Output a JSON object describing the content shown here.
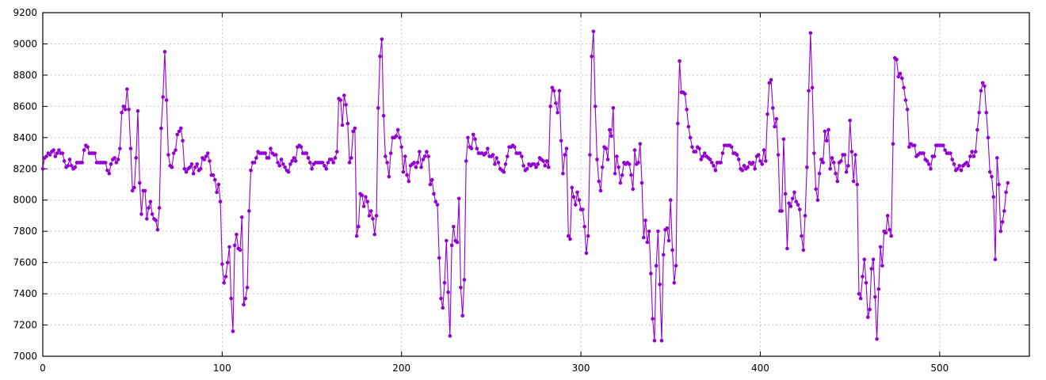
{
  "chart_data": {
    "type": "line",
    "title": "",
    "xlabel": "",
    "ylabel": "",
    "xlim": [
      0,
      550
    ],
    "ylim": [
      7000,
      9200
    ],
    "x_ticks": [
      0,
      100,
      200,
      300,
      400,
      500
    ],
    "y_ticks": [
      7000,
      7200,
      7400,
      7600,
      7800,
      8000,
      8200,
      8400,
      8600,
      8800,
      9000,
      9200
    ],
    "grid": true,
    "series_color": "#9400d3",
    "marker": "circle",
    "series": [
      {
        "values": [
          8200,
          8270,
          8280,
          8300,
          8290,
          8310,
          8320,
          8280,
          8300,
          8320,
          8300,
          8300,
          8250,
          8210,
          8220,
          8260,
          8220,
          8200,
          8210,
          8240,
          8240,
          8240,
          8240,
          8320,
          8350,
          8340,
          8300,
          8300,
          8300,
          8300,
          8240,
          8240,
          8240,
          8240,
          8240,
          8240,
          8190,
          8170,
          8230,
          8260,
          8270,
          8240,
          8260,
          8330,
          8560,
          8600,
          8580,
          8710,
          8580,
          8330,
          8060,
          8080,
          8270,
          8570,
          8110,
          7910,
          8060,
          8060,
          7880,
          7950,
          7990,
          7910,
          7880,
          7870,
          7810,
          7950,
          8460,
          8660,
          8950,
          8640,
          8290,
          8220,
          8210,
          8300,
          8320,
          8420,
          8440,
          8460,
          8380,
          8200,
          8180,
          8200,
          8210,
          8230,
          8170,
          8210,
          8230,
          8190,
          8200,
          8270,
          8260,
          8280,
          8300,
          8250,
          8160,
          8160,
          8130,
          8050,
          8100,
          7990,
          7590,
          7470,
          7510,
          7600,
          7700,
          7370,
          7160,
          7710,
          7780,
          7690,
          7680,
          7890,
          7330,
          7370,
          7440,
          7930,
          8190,
          8240,
          8240,
          8270,
          8310,
          8300,
          8300,
          8300,
          8300,
          8270,
          8270,
          8330,
          8300,
          8290,
          8290,
          8240,
          8220,
          8260,
          8230,
          8210,
          8190,
          8180,
          8230,
          8250,
          8270,
          8250,
          8340,
          8350,
          8340,
          8300,
          8300,
          8300,
          8270,
          8240,
          8200,
          8230,
          8240,
          8240,
          8240,
          8240,
          8240,
          8220,
          8200,
          8240,
          8260,
          8260,
          8240,
          8270,
          8310,
          8650,
          8640,
          8480,
          8670,
          8610,
          8490,
          8240,
          8270,
          8440,
          8460,
          7770,
          7830,
          8040,
          8030,
          7960,
          8020,
          7990,
          7900,
          7930,
          7880,
          7780,
          7900,
          8590,
          8920,
          9030,
          8540,
          8280,
          8240,
          8150,
          8300,
          8400,
          8400,
          8410,
          8450,
          8400,
          8340,
          8180,
          8280,
          8160,
          8120,
          8220,
          8230,
          8240,
          8210,
          8240,
          8310,
          8210,
          8260,
          8280,
          8310,
          8280,
          8100,
          8130,
          8040,
          7990,
          7970,
          7630,
          7370,
          7310,
          7470,
          7740,
          7410,
          7130,
          7710,
          7830,
          7740,
          7730,
          8010,
          7440,
          7260,
          7490,
          8250,
          8400,
          8340,
          8330,
          8420,
          8390,
          8330,
          8300,
          8300,
          8300,
          8290,
          8300,
          8330,
          8280,
          8280,
          8290,
          8230,
          8270,
          8240,
          8200,
          8190,
          8180,
          8230,
          8280,
          8340,
          8340,
          8350,
          8340,
          8300,
          8300,
          8300,
          8280,
          8220,
          8190,
          8200,
          8230,
          8220,
          8230,
          8230,
          8210,
          8230,
          8270,
          8260,
          8250,
          8220,
          8250,
          8210,
          8600,
          8720,
          8700,
          8620,
          8560,
          8700,
          8380,
          8170,
          8290,
          8330,
          7770,
          7750,
          8080,
          8020,
          7970,
          8050,
          8000,
          7940,
          7940,
          7830,
          7660,
          7770,
          8290,
          8920,
          9080,
          8600,
          8260,
          8120,
          8060,
          8210,
          8340,
          8330,
          8260,
          8450,
          8410,
          8590,
          8170,
          8280,
          8210,
          8110,
          8160,
          8240,
          8230,
          8240,
          8230,
          8160,
          8070,
          8320,
          8230,
          8240,
          8360,
          8110,
          7760,
          7870,
          7730,
          7800,
          7530,
          7240,
          7100,
          7580,
          7800,
          7460,
          7100,
          7650,
          7810,
          7820,
          7740,
          8000,
          7680,
          7470,
          7580,
          8490,
          8890,
          8690,
          8690,
          8680,
          8580,
          8470,
          8400,
          8340,
          8310,
          8310,
          8340,
          8330,
          8260,
          8280,
          8300,
          8280,
          8270,
          8260,
          8240,
          8220,
          8190,
          8240,
          8240,
          8240,
          8300,
          8350,
          8350,
          8350,
          8350,
          8340,
          8300,
          8300,
          8290,
          8260,
          8200,
          8190,
          8220,
          8200,
          8210,
          8240,
          8230,
          8240,
          8200,
          8280,
          8290,
          8250,
          8230,
          8320,
          8250,
          8550,
          8750,
          8770,
          8590,
          8470,
          8520,
          8290,
          7930,
          7930,
          8390,
          8040,
          7690,
          7980,
          7960,
          8010,
          8050,
          7990,
          7970,
          7940,
          7770,
          7680,
          7900,
          8210,
          8700,
          9070,
          8720,
          8300,
          8070,
          8000,
          8170,
          8260,
          8240,
          8440,
          8380,
          8450,
          8200,
          8270,
          8240,
          8170,
          8120,
          8240,
          8250,
          8290,
          8290,
          8180,
          8220,
          8510,
          8310,
          8120,
          8290,
          8100,
          7400,
          7370,
          7510,
          7620,
          7470,
          7250,
          7300,
          7560,
          7620,
          7380,
          7110,
          7430,
          7700,
          7580,
          7800,
          7790,
          7900,
          7810,
          7770,
          8360,
          8910,
          8900,
          8790,
          8810,
          8780,
          8720,
          8640,
          8580,
          8340,
          8360,
          8350,
          8350,
          8280,
          8290,
          8300,
          8300,
          8300,
          8260,
          8250,
          8230,
          8200,
          8280,
          8280,
          8350,
          8350,
          8350,
          8350,
          8350,
          8320,
          8300,
          8300,
          8300,
          8260,
          8230,
          8190,
          8200,
          8220,
          8190,
          8220,
          8230,
          8240,
          8220,
          8280,
          8310,
          8280,
          8310,
          8450,
          8560,
          8700,
          8750,
          8730,
          8560,
          8400,
          8180,
          8150,
          8020,
          7620,
          8270,
          8100,
          7800,
          7860,
          7930,
          8050,
          8110
        ]
      }
    ]
  }
}
